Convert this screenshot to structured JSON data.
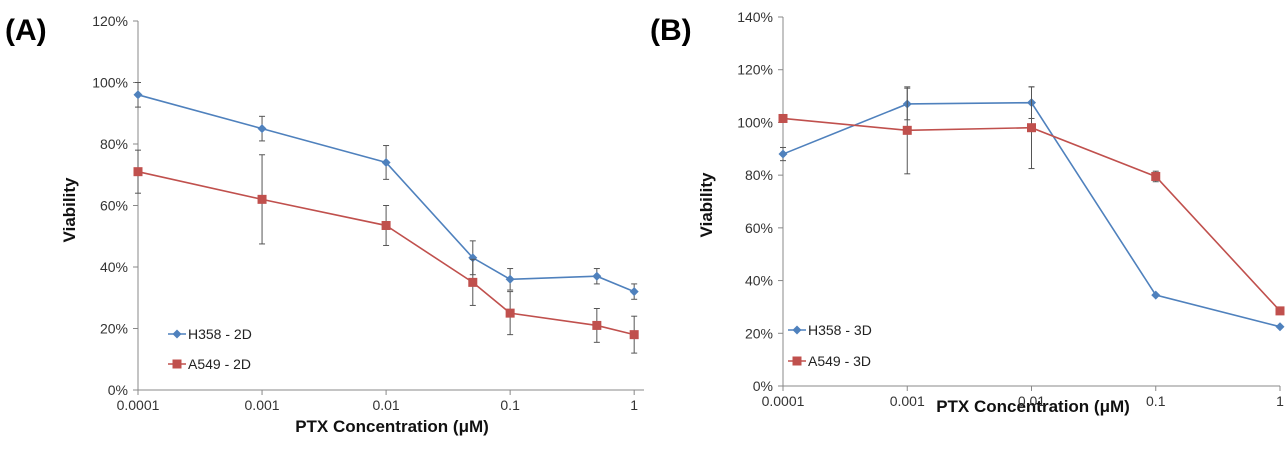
{
  "chart_data": [
    {
      "panel_label": "(A)",
      "type": "line",
      "xscale": "log",
      "x": [
        0.0001,
        0.001,
        0.01,
        0.05,
        0.1,
        0.5,
        1
      ],
      "xticks": [
        0.0001,
        0.001,
        0.01,
        0.1,
        1
      ],
      "xticklabels": [
        "0.0001",
        "0.001",
        "0.01",
        "0.1",
        "1"
      ],
      "xlim": [
        0.0001,
        1.2
      ],
      "ylim": [
        0,
        120
      ],
      "yticks": [
        0,
        20,
        40,
        60,
        80,
        100,
        120
      ],
      "yticklabels": [
        "0%",
        "20%",
        "40%",
        "60%",
        "80%",
        "100%",
        "120%"
      ],
      "xlabel": "PTX Concentration (μM)",
      "ylabel": "Viability",
      "legend_position": "bottom-left",
      "series": [
        {
          "name": "H358 - 2D",
          "color": "#4F81BD",
          "marker": "diamond",
          "values": [
            96,
            85,
            74,
            43,
            36,
            37,
            32
          ],
          "errors": [
            4,
            4,
            5.5,
            5.5,
            3.5,
            2.5,
            2.5
          ]
        },
        {
          "name": "A549 - 2D",
          "color": "#C0504D",
          "marker": "square",
          "values": [
            71,
            62,
            53.5,
            35,
            25,
            21,
            18
          ],
          "errors": [
            7,
            14.5,
            6.5,
            7.5,
            7,
            5.5,
            6
          ]
        }
      ]
    },
    {
      "panel_label": "(B)",
      "type": "line",
      "xscale": "log",
      "x": [
        0.0001,
        0.001,
        0.01,
        0.1,
        1
      ],
      "xticks": [
        0.0001,
        0.001,
        0.01,
        0.1,
        1
      ],
      "xticklabels": [
        "0.0001",
        "0.001",
        "0.01",
        "0.1",
        "1"
      ],
      "xlim": [
        0.0001,
        1
      ],
      "ylim": [
        0,
        140
      ],
      "yticks": [
        0,
        20,
        40,
        60,
        80,
        100,
        120,
        140
      ],
      "yticklabels": [
        "0%",
        "20%",
        "40%",
        "60%",
        "80%",
        "100%",
        "120%",
        "140%"
      ],
      "xlabel": "PTX Concentration (μM)",
      "ylabel": "Viability",
      "legend_position": "bottom-left",
      "series": [
        {
          "name": "H358 - 3D",
          "color": "#4F81BD",
          "marker": "diamond",
          "values": [
            88,
            107,
            107.5,
            34.5,
            22.5
          ],
          "errors": [
            2.5,
            6,
            6,
            0,
            0
          ]
        },
        {
          "name": "A549 - 3D",
          "color": "#C0504D",
          "marker": "square",
          "values": [
            101.5,
            97,
            98,
            79.5,
            28.5
          ],
          "errors": [
            0,
            16.5,
            15.5,
            2,
            0
          ]
        }
      ]
    }
  ]
}
